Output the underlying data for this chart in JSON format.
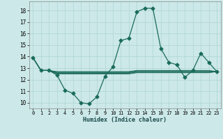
{
  "xlabel": "Humidex (Indice chaleur)",
  "xlim": [
    -0.5,
    23.5
  ],
  "ylim": [
    9.5,
    18.8
  ],
  "xticks": [
    0,
    1,
    2,
    3,
    4,
    5,
    6,
    7,
    8,
    9,
    10,
    11,
    12,
    13,
    14,
    15,
    16,
    17,
    18,
    19,
    20,
    21,
    22,
    23
  ],
  "yticks": [
    10,
    11,
    12,
    13,
    14,
    15,
    16,
    17,
    18
  ],
  "bg_color": "#cce8e8",
  "grid_color": "#aed4d4",
  "line_color": "#1a6b5a",
  "main_series": [
    13.9,
    12.8,
    12.8,
    12.4,
    11.1,
    10.8,
    10.0,
    9.9,
    10.5,
    12.3,
    13.1,
    15.4,
    15.6,
    17.9,
    18.2,
    18.2,
    14.7,
    13.5,
    13.3,
    12.2,
    12.8,
    14.3,
    13.5,
    12.7
  ],
  "flat_series": [
    [
      13.9,
      12.8,
      12.8,
      12.5,
      12.5,
      12.5,
      12.5,
      12.5,
      12.5,
      12.5,
      12.5,
      12.5,
      12.5,
      12.6,
      12.6,
      12.6,
      12.6,
      12.6,
      12.6,
      12.6,
      12.6,
      12.6,
      12.6,
      12.7
    ],
    [
      13.9,
      12.8,
      12.8,
      12.55,
      12.55,
      12.55,
      12.55,
      12.55,
      12.55,
      12.55,
      12.55,
      12.55,
      12.55,
      12.65,
      12.65,
      12.65,
      12.65,
      12.65,
      12.65,
      12.65,
      12.65,
      12.65,
      12.65,
      12.7
    ],
    [
      13.9,
      12.8,
      12.8,
      12.6,
      12.6,
      12.6,
      12.6,
      12.6,
      12.6,
      12.6,
      12.6,
      12.6,
      12.6,
      12.7,
      12.7,
      12.7,
      12.7,
      12.7,
      12.7,
      12.7,
      12.7,
      12.7,
      12.7,
      12.7
    ],
    [
      13.9,
      12.8,
      12.8,
      12.65,
      12.65,
      12.65,
      12.65,
      12.65,
      12.65,
      12.65,
      12.65,
      12.65,
      12.65,
      12.75,
      12.75,
      12.75,
      12.75,
      12.75,
      12.75,
      12.75,
      12.75,
      12.75,
      12.75,
      12.7
    ],
    [
      13.9,
      12.8,
      12.8,
      12.7,
      12.7,
      12.7,
      12.7,
      12.7,
      12.7,
      12.7,
      12.7,
      12.7,
      12.7,
      12.8,
      12.8,
      12.8,
      12.8,
      12.8,
      12.8,
      12.8,
      12.8,
      12.8,
      12.8,
      12.7
    ]
  ],
  "marker": "D",
  "markersize": 2.5,
  "linewidth_main": 0.9,
  "linewidth_flat": 0.7
}
